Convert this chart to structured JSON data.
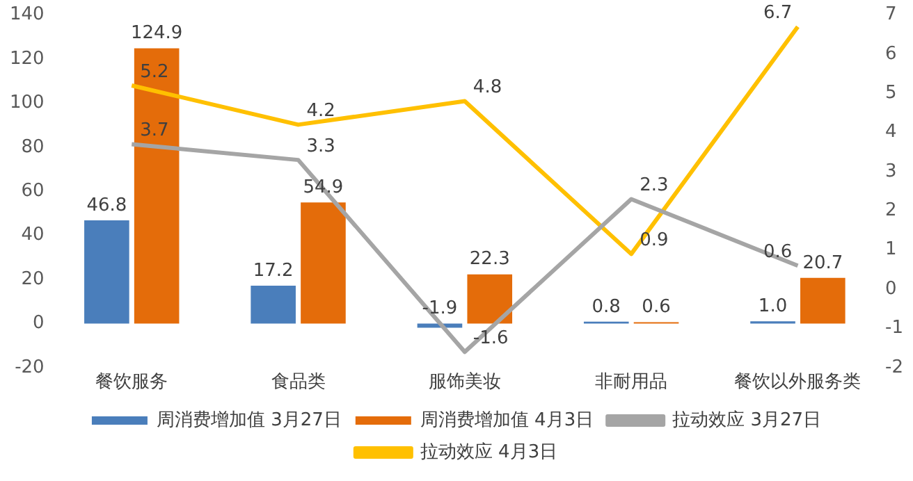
{
  "chart_data": {
    "type": "bar",
    "categories": [
      "餐饮服务",
      "食品类",
      "服饰美妆",
      "非耐用品",
      "餐饮以外服务类"
    ],
    "series": [
      {
        "name": "周消费增加值 3月27日",
        "color": "#4a7ebb",
        "values": [
          46.8,
          17.2,
          -1.9,
          0.8,
          1.0
        ],
        "value_labels": [
          "46.8",
          "17.2",
          "-1.9",
          "0.8",
          "1.0"
        ]
      },
      {
        "name": "周消费增加值 4月3日",
        "color": "#e46c0a",
        "values": [
          124.9,
          54.9,
          22.3,
          0.6,
          20.7
        ],
        "value_labels": [
          "124.9",
          "54.9",
          "22.3",
          "0.6",
          "20.7"
        ]
      },
      {
        "name": "拉动效应 3月27日",
        "type": "line",
        "axis": "y2",
        "color": "#a5a5a5",
        "values": [
          3.7,
          3.3,
          -1.6,
          2.3,
          0.6
        ],
        "value_labels": [
          "3.7",
          "3.3",
          "-1.6",
          "2.3",
          "0.6"
        ]
      },
      {
        "name": "拉动效应 4月3日",
        "type": "line",
        "axis": "y2",
        "color": "#ffc000",
        "values": [
          5.2,
          4.2,
          4.8,
          0.9,
          6.7
        ],
        "value_labels": [
          "5.2",
          "4.2",
          "4.8",
          "0.9",
          "6.7"
        ]
      }
    ],
    "ylim": [
      -20,
      140
    ],
    "yticks": [
      -20,
      0,
      20,
      40,
      60,
      80,
      100,
      120,
      140
    ],
    "y2lim": [
      -2,
      7
    ],
    "y2ticks": [
      -2,
      -1,
      0,
      1,
      2,
      3,
      4,
      5,
      6,
      7
    ],
    "grid": false,
    "legend": "bottom",
    "marker": "none"
  }
}
